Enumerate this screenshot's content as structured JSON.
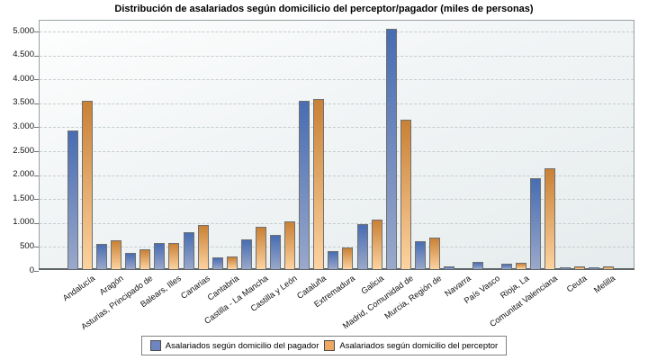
{
  "chart_data": {
    "type": "bar",
    "title": "Distribución de asalariados según domicilicio del perceptor/pagador (miles de personas)",
    "unit": "miles de personas",
    "categories": [
      "Andalucía",
      "Aragón",
      "Asturias, Principado de",
      "Balears, Illes",
      "Canarias",
      "Cantabria",
      "Castilla - La Mancha",
      "Castilla y León",
      "Cataluña",
      "Extremadura",
      "Galicia",
      "Madrid, Comunidad de",
      "Murcia, Región de",
      "Navarra",
      "País Vasco",
      "Rioja, La",
      "Comunitat Valenciana",
      "Ceuta",
      "Melilla"
    ],
    "series": [
      {
        "name": "Asalariados según domicilio del pagador",
        "color": "#6d86bf",
        "values": [
          2900,
          530,
          335,
          545,
          775,
          245,
          625,
          720,
          3510,
          375,
          935,
          5010,
          580,
          50,
          150,
          110,
          1890,
          30,
          30
        ]
      },
      {
        "name": "Asalariados según domicilio del perceptor",
        "color": "#efa763",
        "values": [
          3520,
          605,
          405,
          550,
          920,
          265,
          880,
          1000,
          3550,
          450,
          1030,
          3120,
          650,
          0,
          0,
          140,
          2100,
          55,
          55
        ]
      }
    ],
    "ylim": [
      0,
      5000
    ],
    "ytick_step": 500,
    "ytick_labels": [
      "0",
      "500",
      "1.000",
      "1.500",
      "2.000",
      "2.500",
      "3.000",
      "3.500",
      "4.000",
      "4.500",
      "5.000"
    ],
    "grid": "horizontal-dashed",
    "legend_position": "bottom-center",
    "xlabel": "",
    "ylabel": ""
  },
  "colors": {
    "bar_pagador_top": "#486db2",
    "bar_pagador_bottom": "#9aa8ca",
    "bar_perceptor_top": "#c98136",
    "bar_perceptor_bottom": "#fdd3a0",
    "plot_border": "#98a1a4",
    "gridline": "#c6ccce",
    "axis_line": "#5e6567"
  }
}
